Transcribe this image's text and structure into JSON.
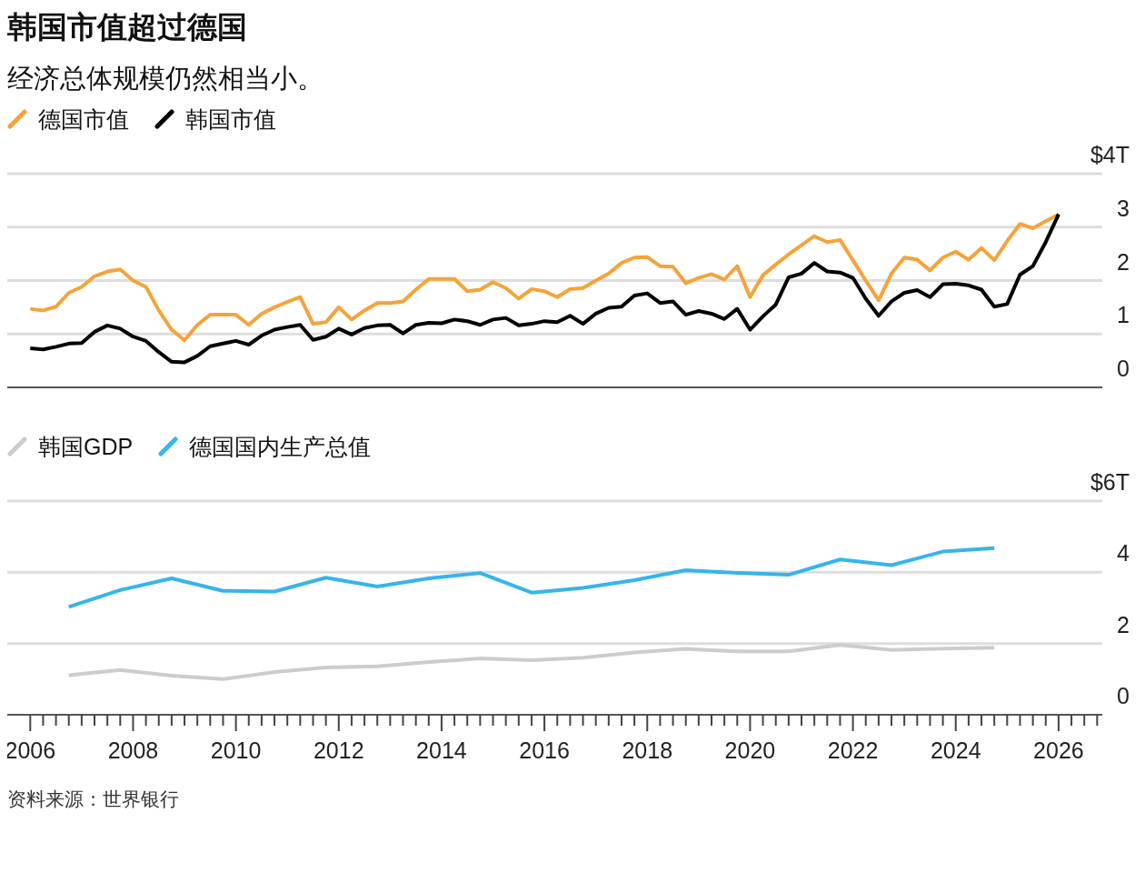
{
  "chart_data": [
    {
      "type": "line",
      "title": "韩国市值超过德国",
      "subtitle": "经济总体规模仍然相当小。",
      "legend": "top left",
      "grid": "y",
      "tick_labels": "y",
      "marker": "none",
      "line_style": "solid",
      "x": [
        2006,
        2006.25,
        2006.5,
        2006.75,
        2007,
        2007.25,
        2007.5,
        2007.75,
        2008,
        2008.25,
        2008.5,
        2008.75,
        2009,
        2009.25,
        2009.5,
        2009.75,
        2010,
        2010.25,
        2010.5,
        2010.75,
        2011,
        2011.25,
        2011.5,
        2011.75,
        2012,
        2012.25,
        2012.5,
        2012.75,
        2013,
        2013.25,
        2013.5,
        2013.75,
        2014,
        2014.25,
        2014.5,
        2014.75,
        2015,
        2015.25,
        2015.5,
        2015.75,
        2016,
        2016.25,
        2016.5,
        2016.75,
        2017,
        2017.25,
        2017.5,
        2017.75,
        2018,
        2018.25,
        2018.5,
        2018.75,
        2019,
        2019.25,
        2019.5,
        2019.75,
        2020,
        2020.25,
        2020.5,
        2020.75,
        2021,
        2021.25,
        2021.5,
        2021.75,
        2022,
        2022.25,
        2022.5,
        2022.75,
        2023,
        2023.25,
        2023.5,
        2023.75,
        2024,
        2024.25,
        2024.5,
        2024.75,
        2025,
        2025.25,
        2025.5,
        2025.75,
        2026
      ],
      "series": [
        {
          "name": "德国市值",
          "color": "#f5a33a",
          "values": [
            1.47,
            1.44,
            1.51,
            1.77,
            1.88,
            2.08,
            2.17,
            2.21,
            2.0,
            1.88,
            1.44,
            1.08,
            0.88,
            1.17,
            1.36,
            1.36,
            1.36,
            1.17,
            1.38,
            1.5,
            1.6,
            1.69,
            1.19,
            1.22,
            1.5,
            1.27,
            1.44,
            1.58,
            1.58,
            1.61,
            1.83,
            2.03,
            2.03,
            2.03,
            1.8,
            1.83,
            1.97,
            1.86,
            1.66,
            1.84,
            1.8,
            1.69,
            1.84,
            1.86,
            2.0,
            2.13,
            2.33,
            2.43,
            2.44,
            2.27,
            2.26,
            1.95,
            2.05,
            2.12,
            2.02,
            2.27,
            1.69,
            2.1,
            2.3,
            2.49,
            2.66,
            2.83,
            2.72,
            2.76,
            2.38,
            2.0,
            1.63,
            2.13,
            2.43,
            2.39,
            2.19,
            2.43,
            2.54,
            2.39,
            2.61,
            2.38,
            2.74,
            3.06,
            2.98,
            3.11,
            3.24
          ]
        },
        {
          "name": "韩国市值",
          "color": "#000000",
          "values": [
            0.73,
            0.71,
            0.76,
            0.82,
            0.83,
            1.04,
            1.16,
            1.1,
            0.95,
            0.87,
            0.66,
            0.48,
            0.47,
            0.59,
            0.77,
            0.82,
            0.87,
            0.8,
            0.97,
            1.08,
            1.13,
            1.17,
            0.89,
            0.95,
            1.1,
            0.99,
            1.11,
            1.16,
            1.17,
            1.01,
            1.17,
            1.21,
            1.2,
            1.27,
            1.24,
            1.17,
            1.27,
            1.3,
            1.16,
            1.19,
            1.24,
            1.22,
            1.34,
            1.19,
            1.38,
            1.49,
            1.51,
            1.72,
            1.76,
            1.58,
            1.61,
            1.36,
            1.43,
            1.38,
            1.28,
            1.47,
            1.08,
            1.33,
            1.55,
            2.06,
            2.13,
            2.33,
            2.17,
            2.15,
            2.05,
            1.66,
            1.34,
            1.61,
            1.77,
            1.82,
            1.69,
            1.93,
            1.94,
            1.91,
            1.83,
            1.51,
            1.56,
            2.11,
            2.27,
            2.72,
            3.24
          ]
        }
      ],
      "xlim": [
        2005.5,
        2026.85
      ],
      "ylim": [
        0,
        4
      ],
      "yticks": [
        0,
        1,
        2,
        3,
        {
          "value": 4,
          "label": "$4T"
        }
      ]
    },
    {
      "type": "line",
      "legend": "top left",
      "grid": "y",
      "marker": "none",
      "line_style": "solid",
      "x": [
        2006.75,
        2007.75,
        2008.75,
        2009.75,
        2010.75,
        2011.75,
        2012.75,
        2013.75,
        2014.75,
        2015.75,
        2016.75,
        2017.75,
        2018.75,
        2019.75,
        2020.75,
        2021.75,
        2022.75,
        2023.75,
        2024.75
      ],
      "series": [
        {
          "name": "韩国GDP",
          "color": "#cccccc",
          "values": [
            1.11,
            1.26,
            1.1,
            1.0,
            1.2,
            1.33,
            1.36,
            1.48,
            1.58,
            1.53,
            1.6,
            1.75,
            1.85,
            1.78,
            1.78,
            1.96,
            1.82,
            1.86,
            1.88
          ]
        },
        {
          "name": "德国国内生产总值",
          "color": "#36b4ec",
          "values": [
            3.03,
            3.5,
            3.83,
            3.48,
            3.46,
            3.85,
            3.6,
            3.83,
            3.98,
            3.43,
            3.56,
            3.78,
            4.06,
            3.98,
            3.93,
            4.36,
            4.2,
            4.58,
            4.68
          ]
        }
      ],
      "xlim": [
        2005.5,
        2026.85
      ],
      "ylim": [
        0,
        6
      ],
      "yticks": [
        0,
        2,
        4,
        {
          "value": 6,
          "label": "$6T"
        }
      ],
      "xticks": [
        2006,
        {
          "value": 2006.25,
          "label": null
        },
        {
          "value": 2006.5,
          "label": null
        },
        {
          "value": 2006.75,
          "label": null
        },
        {
          "value": 2007,
          "label": null
        },
        {
          "value": 2007.25,
          "label": null
        },
        {
          "value": 2007.5,
          "label": null
        },
        {
          "value": 2007.75,
          "label": null
        },
        2008,
        {
          "value": 2008.25,
          "label": null
        },
        {
          "value": 2008.5,
          "label": null
        },
        {
          "value": 2008.75,
          "label": null
        },
        {
          "value": 2009,
          "label": null
        },
        {
          "value": 2009.25,
          "label": null
        },
        {
          "value": 2009.5,
          "label": null
        },
        {
          "value": 2009.75,
          "label": null
        },
        2010,
        {
          "value": 2010.25,
          "label": null
        },
        {
          "value": 2010.5,
          "label": null
        },
        {
          "value": 2010.75,
          "label": null
        },
        {
          "value": 2011,
          "label": null
        },
        {
          "value": 2011.25,
          "label": null
        },
        {
          "value": 2011.5,
          "label": null
        },
        {
          "value": 2011.75,
          "label": null
        },
        2012,
        {
          "value": 2012.25,
          "label": null
        },
        {
          "value": 2012.5,
          "label": null
        },
        {
          "value": 2012.75,
          "label": null
        },
        {
          "value": 2013,
          "label": null
        },
        {
          "value": 2013.25,
          "label": null
        },
        {
          "value": 2013.5,
          "label": null
        },
        {
          "value": 2013.75,
          "label": null
        },
        2014,
        {
          "value": 2014.25,
          "label": null
        },
        {
          "value": 2014.5,
          "label": null
        },
        {
          "value": 2014.75,
          "label": null
        },
        {
          "value": 2015,
          "label": null
        },
        {
          "value": 2015.25,
          "label": null
        },
        {
          "value": 2015.5,
          "label": null
        },
        {
          "value": 2015.75,
          "label": null
        },
        2016,
        {
          "value": 2016.25,
          "label": null
        },
        {
          "value": 2016.5,
          "label": null
        },
        {
          "value": 2016.75,
          "label": null
        },
        {
          "value": 2017,
          "label": null
        },
        {
          "value": 2017.25,
          "label": null
        },
        {
          "value": 2017.5,
          "label": null
        },
        {
          "value": 2017.75,
          "label": null
        },
        2018,
        {
          "value": 2018.25,
          "label": null
        },
        {
          "value": 2018.5,
          "label": null
        },
        {
          "value": 2018.75,
          "label": null
        },
        {
          "value": 2019,
          "label": null
        },
        {
          "value": 2019.25,
          "label": null
        },
        {
          "value": 2019.5,
          "label": null
        },
        {
          "value": 2019.75,
          "label": null
        },
        2020,
        {
          "value": 2020.25,
          "label": null
        },
        {
          "value": 2020.5,
          "label": null
        },
        {
          "value": 2020.75,
          "label": null
        },
        {
          "value": 2021,
          "label": null
        },
        {
          "value": 2021.25,
          "label": null
        },
        {
          "value": 2021.5,
          "label": null
        },
        {
          "value": 2021.75,
          "label": null
        },
        2022,
        {
          "value": 2022.25,
          "label": null
        },
        {
          "value": 2022.5,
          "label": null
        },
        {
          "value": 2022.75,
          "label": null
        },
        {
          "value": 2023,
          "label": null
        },
        {
          "value": 2023.25,
          "label": null
        },
        {
          "value": 2023.5,
          "label": null
        },
        {
          "value": 2023.75,
          "label": null
        },
        2024,
        {
          "value": 2024.25,
          "label": null
        },
        {
          "value": 2024.5,
          "label": null
        },
        {
          "value": 2024.75,
          "label": null
        },
        {
          "value": 2025,
          "label": null
        },
        {
          "value": 2025.25,
          "label": null
        },
        {
          "value": 2025.5,
          "label": null
        },
        {
          "value": 2025.75,
          "label": null
        },
        2026,
        {
          "value": 2026.25,
          "label": null
        },
        {
          "value": 2026.5,
          "label": null
        },
        {
          "value": 2026.75,
          "label": null
        }
      ],
      "annotations": [
        "资料来源：世界银行"
      ]
    }
  ]
}
